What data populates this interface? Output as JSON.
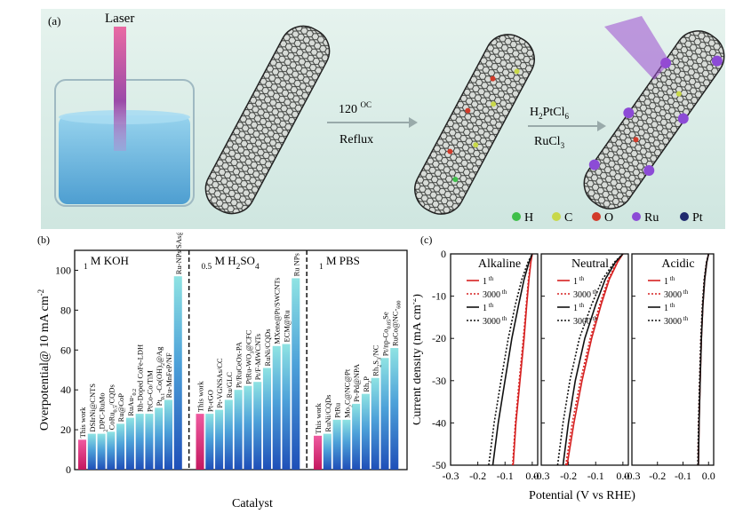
{
  "panel_a": {
    "label": "(a)",
    "laser_label": "Laser",
    "step1_temp": "120",
    "step1_temp_unit": "OC",
    "step1_method": "Reflux",
    "step2_reagent_1": "H2PtCl6",
    "step2_reagent_2": "RuCl3",
    "legend": [
      {
        "symbol": "H",
        "color": "#3fbf4a"
      },
      {
        "symbol": "C",
        "color": "#c8d84a"
      },
      {
        "symbol": "O",
        "color": "#d23b2a"
      },
      {
        "symbol": "Ru",
        "color": "#8c4bd6"
      },
      {
        "symbol": "Pt",
        "color": "#1f2a6e"
      }
    ]
  },
  "chart_data": [
    {
      "type": "bar",
      "panel": "(b)",
      "xlabel": "Catalyst",
      "ylabel": "Overpotential@ 10 mA cm-2",
      "ylim": [
        0,
        110
      ],
      "yticks": [
        0,
        20,
        40,
        60,
        80,
        100
      ],
      "groups": [
        {
          "name": "1 M KOH",
          "categories": [
            "This work",
            "DSIrNi@CNTS",
            "2DPC-RuMo",
            "CoRu0.5/CQDs",
            "Ru@CoP",
            "RuAu-0.2",
            "Rh-Doped CoFe-LDH",
            "PtCo-Co/TiM",
            "Pt0.1-Co(OH)2@Ag",
            "Ru-MnFeP/NF",
            "Ru-NPs/SAs@N-TC"
          ],
          "values": [
            15,
            18,
            18,
            19,
            23,
            26,
            28,
            28,
            31,
            35,
            97
          ]
        },
        {
          "name": "0.5 M H2SO4",
          "categories": [
            "This work",
            "Pt-rGO",
            "Pt-VGNSAs/CC",
            "Ru/GLC",
            "Pt/RuCeOx-PA",
            "PtRu-WO3@CFC",
            "Pt/F-MWCNTs",
            "RuNi/CQDs",
            "MXene@Pt/SWCNTs",
            "ECM@Ru",
            "Ru NPs"
          ],
          "values": [
            28,
            28,
            30,
            35,
            40,
            42,
            44,
            51,
            62,
            63,
            96
          ]
        },
        {
          "name": "1 M PBS",
          "categories": [
            "This work",
            "RuNi/CQDs",
            "PtRu",
            "Mo2C@NC@Pt",
            "Pt-Pd@NPA",
            "Rh2P",
            "Rh2S3/NC",
            "Pt/np-Co0.85Se",
            "RuCo@NC-600"
          ],
          "values": [
            17,
            18,
            25,
            25,
            33,
            38,
            46,
            56,
            61
          ]
        }
      ]
    },
    {
      "type": "line",
      "panel": "(c)",
      "xlabel": "Potential (V vs RHE)",
      "ylabel": "Current density (mA cm-2)",
      "ylim": [
        -50,
        0
      ],
      "yticks": [
        0,
        -10,
        -20,
        -30,
        -40,
        -50
      ],
      "xticks": [
        -0.3,
        -0.2,
        -0.1,
        0.0
      ],
      "subplots": [
        {
          "name": "Alkaline",
          "xlim": [
            -0.3,
            0.02
          ],
          "series": [
            {
              "name": "1 th",
              "color": "#d62020",
              "style": "solid",
              "x": [
                -0.07,
                -0.06,
                -0.045,
                -0.03,
                -0.02,
                -0.012,
                -0.005,
                0.0
              ],
              "y": [
                -50,
                -40,
                -30,
                -20,
                -12,
                -6,
                -2,
                0
              ]
            },
            {
              "name": "3000 th",
              "color": "#d62020",
              "style": "dotted",
              "x": [
                -0.072,
                -0.062,
                -0.048,
                -0.033,
                -0.022,
                -0.014,
                -0.006,
                0.0
              ],
              "y": [
                -50,
                -40,
                -30,
                -20,
                -12,
                -6,
                -2,
                0
              ]
            },
            {
              "name": "1 th",
              "color": "#111111",
              "style": "solid",
              "x": [
                -0.145,
                -0.125,
                -0.1,
                -0.075,
                -0.05,
                -0.03,
                -0.012,
                0.0
              ],
              "y": [
                -50,
                -40,
                -30,
                -20,
                -12,
                -6,
                -2,
                0
              ]
            },
            {
              "name": "3000 th",
              "color": "#111111",
              "style": "dotted",
              "x": [
                -0.16,
                -0.14,
                -0.115,
                -0.088,
                -0.062,
                -0.038,
                -0.016,
                0.0
              ],
              "y": [
                -50,
                -40,
                -30,
                -20,
                -12,
                -6,
                -2,
                0
              ]
            }
          ]
        },
        {
          "name": "Neutral",
          "xlim": [
            -0.3,
            0.02
          ],
          "series": [
            {
              "name": "1 th",
              "color": "#d62020",
              "style": "solid",
              "x": [
                -0.205,
                -0.18,
                -0.15,
                -0.115,
                -0.08,
                -0.05,
                -0.02,
                0.0
              ],
              "y": [
                -50,
                -40,
                -30,
                -20,
                -12,
                -6,
                -2,
                0
              ]
            },
            {
              "name": "3000 th",
              "color": "#d62020",
              "style": "dotted",
              "x": [
                -0.21,
                -0.186,
                -0.156,
                -0.12,
                -0.085,
                -0.054,
                -0.022,
                0.0
              ],
              "y": [
                -50,
                -40,
                -30,
                -20,
                -12,
                -6,
                -2,
                0
              ]
            },
            {
              "name": "1 th",
              "color": "#111111",
              "style": "solid",
              "x": [
                -0.22,
                -0.2,
                -0.175,
                -0.14,
                -0.1,
                -0.065,
                -0.028,
                0.0
              ],
              "y": [
                -50,
                -40,
                -30,
                -20,
                -12,
                -6,
                -2,
                0
              ]
            },
            {
              "name": "3000 th",
              "color": "#111111",
              "style": "dotted",
              "x": [
                -0.24,
                -0.22,
                -0.195,
                -0.16,
                -0.115,
                -0.075,
                -0.032,
                0.0
              ],
              "y": [
                -50,
                -40,
                -30,
                -20,
                -12,
                -6,
                -2,
                0
              ]
            }
          ]
        },
        {
          "name": "Acidic",
          "xlim": [
            -0.3,
            0.02
          ],
          "series": [
            {
              "name": "1 th",
              "color": "#d62020",
              "style": "solid",
              "x": [
                -0.04,
                -0.037,
                -0.033,
                -0.028,
                -0.022,
                -0.015,
                -0.007,
                0.0
              ],
              "y": [
                -50,
                -40,
                -30,
                -20,
                -12,
                -6,
                -2,
                0
              ]
            },
            {
              "name": "3000 th",
              "color": "#d62020",
              "style": "dotted",
              "x": [
                -0.042,
                -0.039,
                -0.035,
                -0.03,
                -0.024,
                -0.017,
                -0.008,
                0.0
              ],
              "y": [
                -50,
                -40,
                -30,
                -20,
                -12,
                -6,
                -2,
                0
              ]
            },
            {
              "name": "1 th",
              "color": "#111111",
              "style": "solid",
              "x": [
                -0.04,
                -0.037,
                -0.033,
                -0.028,
                -0.022,
                -0.015,
                -0.007,
                0.0
              ],
              "y": [
                -50,
                -40,
                -30,
                -20,
                -12,
                -6,
                -2,
                0
              ]
            },
            {
              "name": "3000 th",
              "color": "#111111",
              "style": "dotted",
              "x": [
                -0.042,
                -0.039,
                -0.035,
                -0.03,
                -0.024,
                -0.017,
                -0.008,
                0.0
              ],
              "y": [
                -50,
                -40,
                -30,
                -20,
                -12,
                -6,
                -2,
                0
              ]
            }
          ]
        }
      ]
    }
  ]
}
